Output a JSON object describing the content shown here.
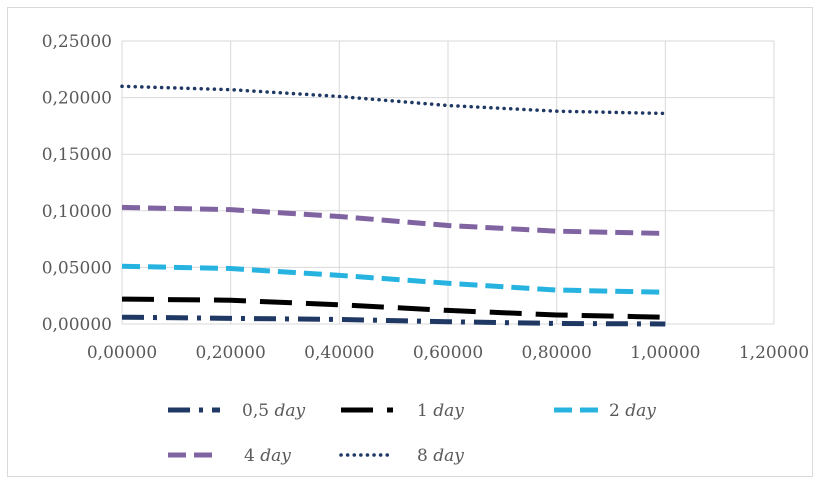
{
  "chart_data": {
    "type": "line",
    "title": "",
    "xlabel": "",
    "ylabel": "",
    "xlim": [
      0,
      1.2
    ],
    "ylim": [
      0,
      0.25
    ],
    "x_ticks": [
      "0,00000",
      "0,20000",
      "0,40000",
      "0,60000",
      "0,80000",
      "1,00000",
      "1,20000"
    ],
    "y_ticks": [
      "0,00000",
      "0,05000",
      "0,10000",
      "0,15000",
      "0,20000",
      "0,25000"
    ],
    "grid": true,
    "legend_position": "bottom",
    "x": [
      0,
      0.2,
      0.4,
      0.6,
      0.8,
      1.0
    ],
    "series": [
      {
        "name": "0,5",
        "unit": "day",
        "values": [
          0.006,
          0.005,
          0.004,
          0.002,
          0.0005,
          0.0
        ],
        "color": "#1f3864",
        "dash": "dash-dot"
      },
      {
        "name": "1",
        "unit": "day",
        "values": [
          0.022,
          0.021,
          0.017,
          0.012,
          0.008,
          0.006
        ],
        "color": "#000000",
        "dash": "long-dash"
      },
      {
        "name": "2",
        "unit": "day",
        "values": [
          0.051,
          0.049,
          0.043,
          0.036,
          0.03,
          0.028
        ],
        "color": "#27b3e0",
        "dash": "dash"
      },
      {
        "name": "4",
        "unit": "day",
        "values": [
          0.103,
          0.101,
          0.095,
          0.087,
          0.082,
          0.08
        ],
        "color": "#8064a2",
        "dash": "dash"
      },
      {
        "name": "8",
        "unit": "day",
        "values": [
          0.21,
          0.207,
          0.201,
          0.193,
          0.188,
          0.186
        ],
        "color": "#1f3864",
        "dash": "dot"
      }
    ]
  }
}
